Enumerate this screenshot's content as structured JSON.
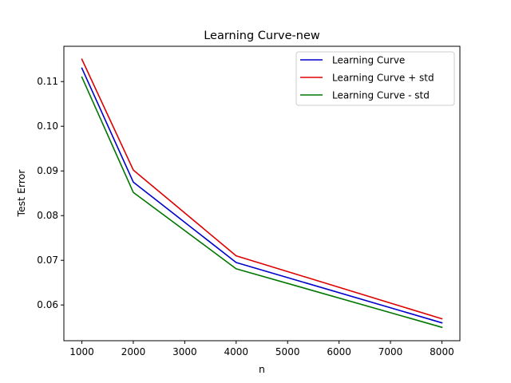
{
  "chart_data": {
    "type": "line",
    "title": "Learning Curve-new",
    "xlabel": "n",
    "ylabel": "Test Error",
    "x": [
      1000,
      2000,
      4000,
      8000
    ],
    "xlim": [
      650,
      8350
    ],
    "ylim": [
      0.052,
      0.1179
    ],
    "xticks": [
      1000,
      2000,
      3000,
      4000,
      5000,
      6000,
      7000,
      8000
    ],
    "yticks": [
      0.06,
      0.07,
      0.08,
      0.09,
      0.1,
      0.11
    ],
    "ytick_decimals": 2,
    "grid": false,
    "legend_position": "top-right",
    "series": [
      {
        "name": "Learning Curve",
        "color": "#0000cc",
        "values": [
          0.113,
          0.0875,
          0.0695,
          0.056
        ]
      },
      {
        "name": "Learning Curve + std",
        "color": "#dd0000",
        "values": [
          0.115,
          0.0902,
          0.071,
          0.0569
        ]
      },
      {
        "name": "Learning Curve - std",
        "color": "#007700",
        "values": [
          0.111,
          0.0852,
          0.0681,
          0.055
        ]
      }
    ]
  }
}
